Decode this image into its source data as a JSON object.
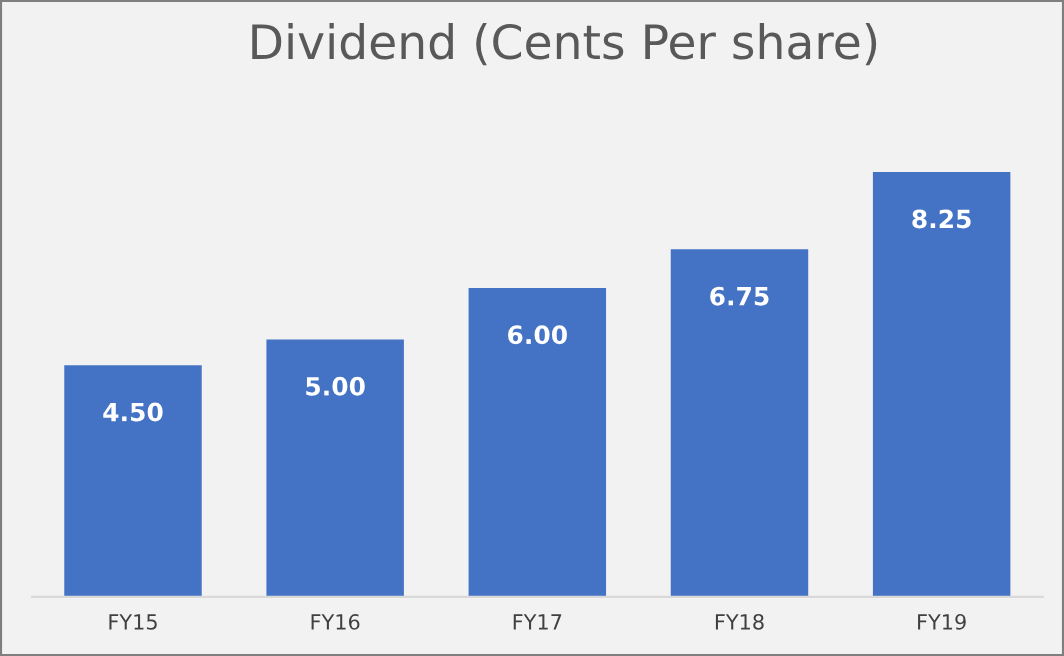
{
  "chart_data": {
    "type": "bar",
    "title": "Dividend (Cents Per share)",
    "categories": [
      "FY15",
      "FY16",
      "FY17",
      "FY18",
      "FY19"
    ],
    "values": [
      4.5,
      5.0,
      6.0,
      6.75,
      8.25
    ],
    "value_labels": [
      "4.50",
      "5.00",
      "6.00",
      "6.75",
      "8.25"
    ],
    "color": "#4472c4",
    "grid": false,
    "legend": false,
    "tick_labels": "x"
  }
}
